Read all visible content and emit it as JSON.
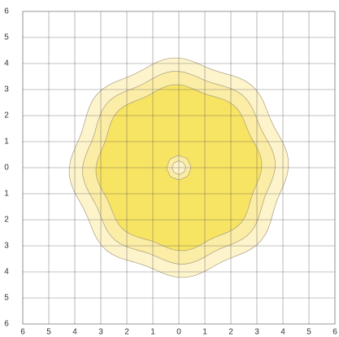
{
  "chart_data": {
    "type": "contour",
    "xlim": [
      -6,
      6
    ],
    "ylim": [
      -6,
      6
    ],
    "xticks": [
      {
        "value": -6,
        "label": "6"
      },
      {
        "value": -5,
        "label": "5"
      },
      {
        "value": -4,
        "label": "4"
      },
      {
        "value": -3,
        "label": "3"
      },
      {
        "value": -2,
        "label": "2"
      },
      {
        "value": -1,
        "label": "1"
      },
      0,
      1,
      2,
      3,
      4,
      5,
      6
    ],
    "yticks": [
      6,
      5,
      4,
      3,
      2,
      1,
      0,
      {
        "value": -1,
        "label": "1"
      },
      {
        "value": -2,
        "label": "2"
      },
      {
        "value": -3,
        "label": "3"
      },
      {
        "value": -4,
        "label": "4"
      },
      {
        "value": -5,
        "label": "5"
      },
      {
        "value": -6,
        "label": "6"
      }
    ],
    "grid": true,
    "contours": [
      {
        "radius": 4.1,
        "color": "#fdf4cc"
      },
      {
        "radius": 3.6,
        "color": "#fbeca6"
      },
      {
        "radius": 3.1,
        "color": "#f8e463"
      },
      {
        "radius": 0.45,
        "color": "#fbeca6"
      },
      {
        "radius": 0.25,
        "color": "#fdf4cc"
      }
    ]
  }
}
